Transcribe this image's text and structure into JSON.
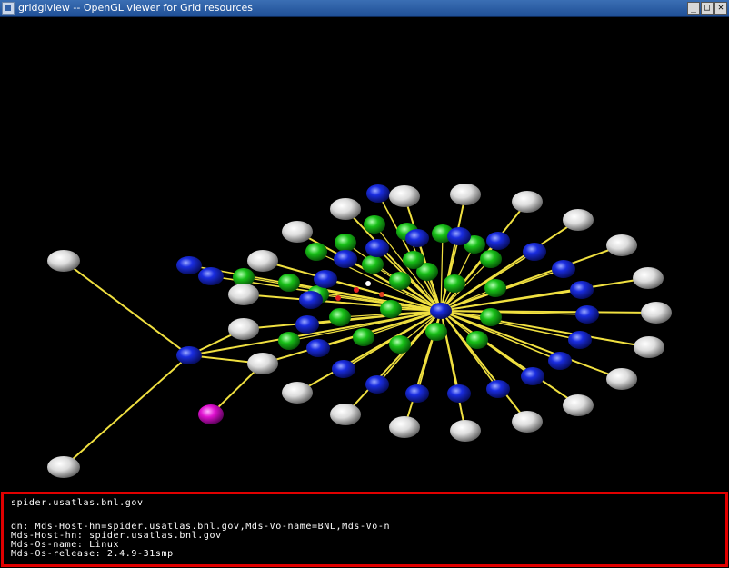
{
  "window": {
    "title": "gridglview -- OpenGL viewer for Grid resources",
    "buttons": {
      "minimize": "_",
      "maximize": "□",
      "close": "✕"
    }
  },
  "colors": {
    "edge": "#f0e040",
    "node_blue": "#1a2de0",
    "node_white": "#e8e8e8",
    "node_green": "#18c018",
    "node_magenta": "#e010d0",
    "info_border": "#e00000"
  },
  "info_panel": {
    "host": "spider.usatlas.bnl.gov",
    "lines": [
      "dn: Mds-Host-hn=spider.usatlas.bnl.gov,Mds-Vo-name=BNL,Mds-Vo-n",
      "Mds-Host-hn: spider.usatlas.bnl.gov",
      "Mds-Os-name: Linux",
      "Mds-Os-release: 2.4.9-31smp"
    ]
  }
}
